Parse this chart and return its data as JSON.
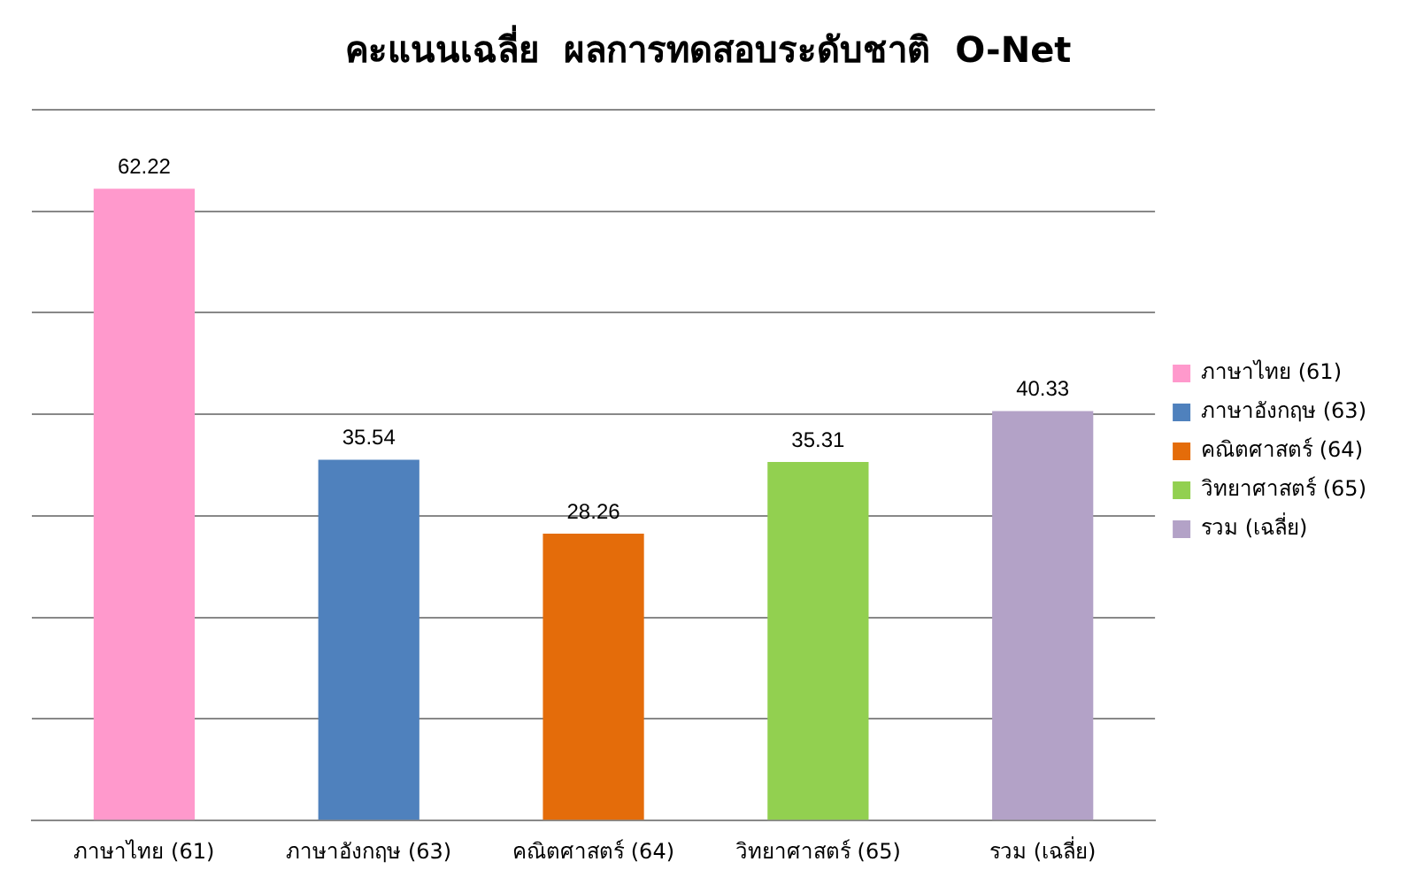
{
  "chart_data": {
    "type": "bar",
    "title": "คะแนนเฉลี่ย  ผลการทดสอบระดับชาติ  O-Net",
    "categories": [
      "ภาษาไทย (61)",
      "ภาษาอังกฤษ (63)",
      "คณิตศาสตร์ (64)",
      "วิทยาศาสตร์ (65)",
      "รวม (เฉลี่ย)"
    ],
    "series": [
      {
        "name": "ภาษาไทย (61)",
        "color": "#ff99cc",
        "values": [
          62.22,
          null,
          null,
          null,
          null
        ]
      },
      {
        "name": "ภาษาอังกฤษ (63)",
        "color": "#4f81bd",
        "values": [
          null,
          35.54,
          null,
          null,
          null
        ]
      },
      {
        "name": "คณิตศาสตร์ (64)",
        "color": "#e46c0a",
        "values": [
          null,
          null,
          28.26,
          null,
          null
        ]
      },
      {
        "name": "วิทยาศาสตร์ (65)",
        "color": "#92d050",
        "values": [
          null,
          null,
          null,
          35.31,
          null
        ]
      },
      {
        "name": "รวม (เฉลี่ย)",
        "color": "#b3a2c7",
        "values": [
          null,
          null,
          null,
          null,
          40.33
        ]
      }
    ],
    "ylim": [
      0,
      70
    ],
    "yticks": [
      {
        "value": 0,
        "label": null
      },
      {
        "value": 10,
        "label": null
      },
      {
        "value": 20,
        "label": null
      },
      {
        "value": 30,
        "label": null
      },
      {
        "value": 40,
        "label": null
      },
      {
        "value": 50,
        "label": null
      },
      {
        "value": 60,
        "label": null
      },
      {
        "value": 70,
        "label": null
      }
    ],
    "tick_labels": "x",
    "grid": "y",
    "legend": "right",
    "data_labels": true
  }
}
